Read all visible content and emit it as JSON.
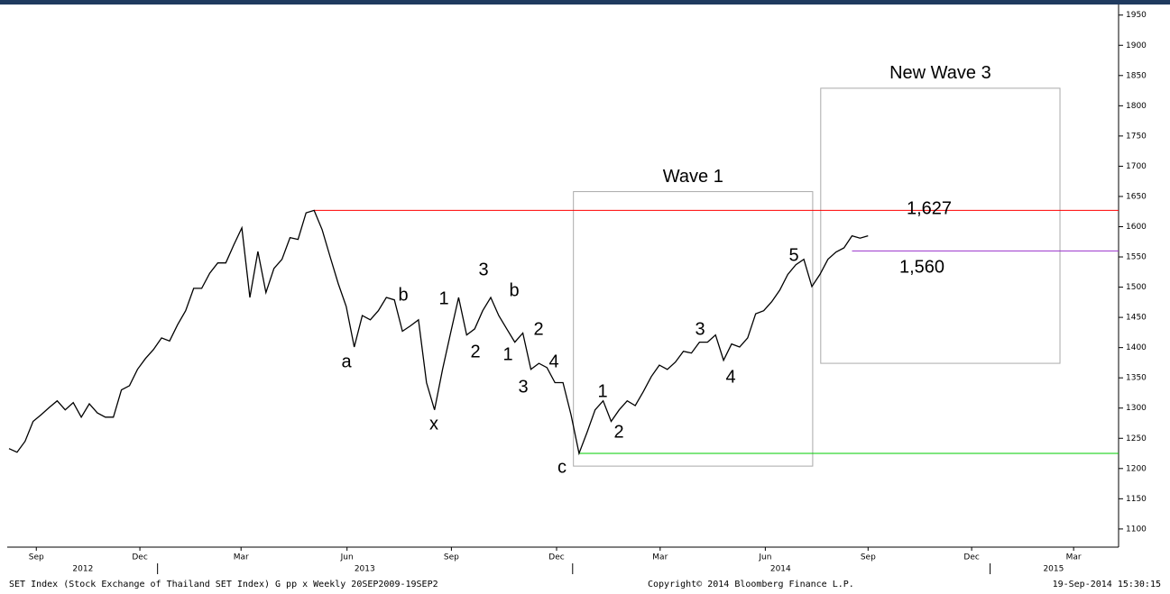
{
  "chart_data": {
    "type": "line",
    "color": "#000000",
    "values": [
      1233,
      1227,
      1245,
      1278,
      1289,
      1301,
      1312,
      1297,
      1309,
      1285,
      1307,
      1292,
      1285,
      1285,
      1330,
      1337,
      1364,
      1382,
      1397,
      1416,
      1411,
      1438,
      1461,
      1498,
      1498,
      1523,
      1540,
      1540,
      1570,
      1598,
      1483,
      1559,
      1491,
      1531,
      1546,
      1582,
      1579,
      1623,
      1627,
      1595,
      1550,
      1506,
      1468,
      1401,
      1453,
      1446,
      1461,
      1483,
      1479,
      1427,
      1436,
      1446,
      1342,
      1297,
      1364,
      1424,
      1483,
      1421,
      1431,
      1461,
      1483,
      1453,
      1431,
      1409,
      1424,
      1364,
      1374,
      1367,
      1342,
      1342,
      1289,
      1225,
      1260,
      1297,
      1312,
      1278,
      1297,
      1312,
      1304,
      1327,
      1352,
      1371,
      1364,
      1376,
      1394,
      1391,
      1409,
      1409,
      1421,
      1379,
      1406,
      1401,
      1416,
      1456,
      1461,
      1476,
      1495,
      1521,
      1537,
      1546,
      1501,
      1521,
      1546,
      1558,
      1565,
      1585,
      1581,
      1585
    ],
    "xlim": [
      0,
      138.2
    ],
    "ylim": [
      1070,
      1963
    ],
    "yticks": [
      1100,
      1150,
      1200,
      1250,
      1300,
      1350,
      1400,
      1450,
      1500,
      1550,
      1600,
      1650,
      1700,
      1750,
      1800,
      1850,
      1900,
      1950
    ],
    "xticks": [
      {
        "value": 3.4,
        "label": "Sep"
      },
      {
        "value": 16.3,
        "label": "Dec"
      },
      {
        "value": 28.9,
        "label": "Mar"
      },
      {
        "value": 42.1,
        "label": "Jun"
      },
      {
        "value": 55.1,
        "label": "Sep"
      },
      {
        "value": 68.2,
        "label": "Dec"
      },
      {
        "value": 81.1,
        "label": "Mar"
      },
      {
        "value": 94.2,
        "label": "Jun"
      },
      {
        "value": 107.0,
        "label": "Sep"
      },
      {
        "value": 119.9,
        "label": "Dec"
      },
      {
        "value": 132.6,
        "label": "Mar"
      }
    ],
    "year_ticks": [
      {
        "value": 9.2,
        "label": "2012"
      },
      {
        "value": 44.3,
        "label": "2013"
      },
      {
        "value": 96.1,
        "label": "2014"
      },
      {
        "value": 130.1,
        "label": "2015"
      }
    ],
    "year_boundaries": [
      18.5,
      70.2,
      122.2
    ],
    "reference_lines": [
      {
        "value": 1627,
        "label": "1,627",
        "color": "#ff0000",
        "from": 38
      },
      {
        "value": 1560,
        "label": "1,560",
        "color": "#9933cc",
        "from": 105
      },
      {
        "value": 1225,
        "color": "#00cc00",
        "from": 71
      }
    ],
    "boxes": [
      {
        "label": "Wave 1",
        "x": [
          70.3,
          100.1
        ],
        "y": [
          1204,
          1658
        ]
      },
      {
        "label": "New Wave 3",
        "x": [
          101.1,
          130.9
        ],
        "y": [
          1374,
          1829
        ]
      }
    ],
    "annotations": [
      "a",
      "b",
      "x",
      "1",
      "2",
      "3",
      "1",
      "b",
      "2",
      "3",
      "4",
      "c",
      "1",
      "2",
      "3",
      "4",
      "5"
    ],
    "footer": [
      "SET Index (Stock Exchange of Thailand SET Index) G pp x  Weekly 20SEP2009-19SEP2",
      "Copyright© 2014 Bloomberg Finance L.P.",
      "19-Sep-2014 15:30:15"
    ]
  }
}
